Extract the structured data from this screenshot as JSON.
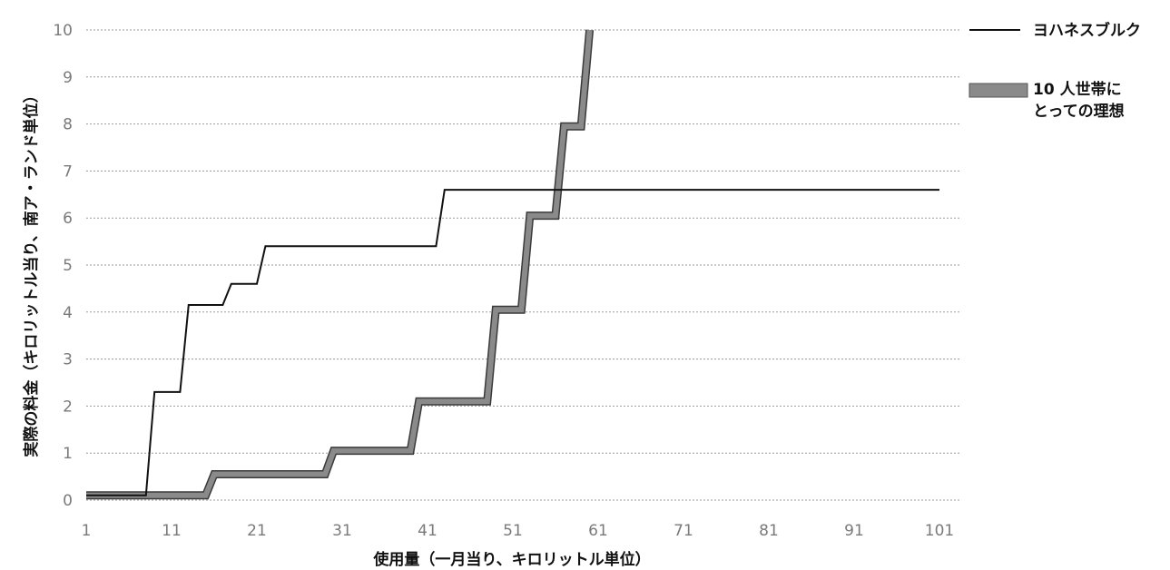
{
  "chart_data": {
    "type": "line",
    "title": "",
    "xlabel": "使用量（一月当り、キロリットル単位）",
    "ylabel": "実際の料金（キロリットル当り、南ア・ランド単位）",
    "xlim": [
      1,
      101
    ],
    "ylim": [
      0,
      10
    ],
    "x_ticks": [
      "1",
      "11",
      "21",
      "31",
      "41",
      "51",
      "61",
      "71",
      "81",
      "91",
      "101"
    ],
    "y_ticks": [
      "0",
      "1",
      "2",
      "3",
      "4",
      "5",
      "6",
      "7",
      "8",
      "9",
      "10"
    ],
    "grid": true,
    "legend_position": "top-right",
    "series": [
      {
        "name": "ヨハネスブルク",
        "color": "#111111",
        "style": "thin",
        "points": [
          [
            1,
            0.1
          ],
          [
            8,
            0.1
          ],
          [
            9,
            2.3
          ],
          [
            12,
            2.3
          ],
          [
            13,
            4.15
          ],
          [
            17,
            4.15
          ],
          [
            18,
            4.6
          ],
          [
            21,
            4.6
          ],
          [
            22,
            5.4
          ],
          [
            42,
            5.4
          ],
          [
            43,
            6.6
          ],
          [
            101,
            6.6
          ]
        ]
      },
      {
        "name": "10 人世帯にとっての理想",
        "color": "#8a8a8a",
        "style": "thick",
        "points": [
          [
            1,
            0.1
          ],
          [
            15,
            0.1
          ],
          [
            16,
            0.55
          ],
          [
            29,
            0.55
          ],
          [
            30,
            1.05
          ],
          [
            39,
            1.05
          ],
          [
            40,
            2.1
          ],
          [
            48,
            2.1
          ],
          [
            49,
            4.05
          ],
          [
            52,
            4.05
          ],
          [
            53,
            6.05
          ],
          [
            56,
            6.05
          ],
          [
            57,
            7.95
          ],
          [
            59,
            7.95
          ],
          [
            60,
            10.0
          ]
        ]
      }
    ]
  }
}
